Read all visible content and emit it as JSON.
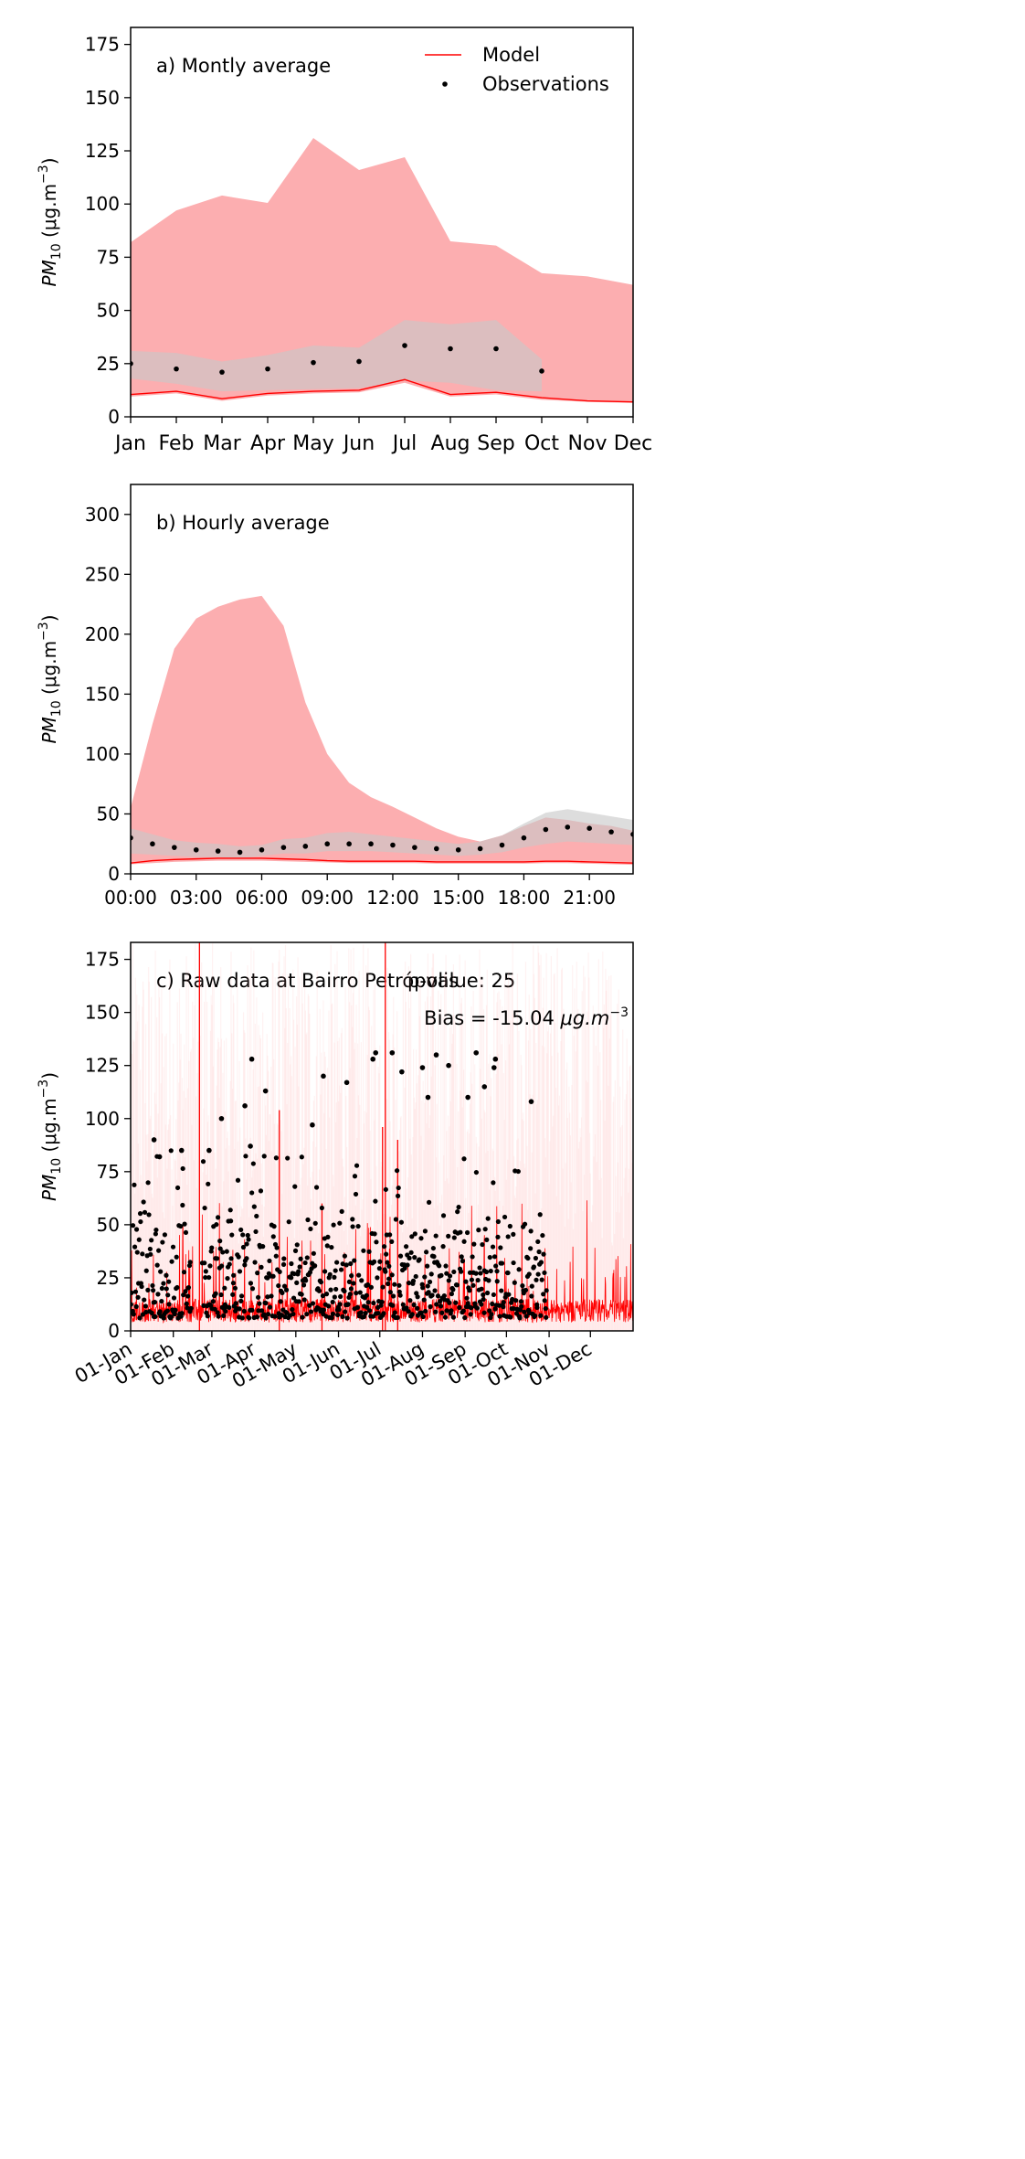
{
  "figure": {
    "colors": {
      "model_band": "#fcaeb0",
      "obs_band": "#c8c8c8",
      "model_line": "#ff0000",
      "obs_points": "#000000",
      "raw_model_shade": "#fde1e1"
    }
  },
  "chart_data": [
    {
      "type": "line",
      "label": "a) Montly average",
      "ylabel_main": "PM",
      "ylabel_sub": "10",
      "ylabel_units": "(μg.m",
      "ylabel_exp": "−3",
      "ylabel_close": ")",
      "ylim": [
        0,
        183
      ],
      "yticks": [
        0,
        25,
        50,
        75,
        100,
        125,
        150,
        175
      ],
      "x_is_numeric": false,
      "categories": [
        "Jan",
        "Feb",
        "Mar",
        "Apr",
        "May",
        "Jun",
        "Jul",
        "Aug",
        "Sep",
        "Oct",
        "Nov",
        "Dec"
      ],
      "xlim": [
        0,
        11
      ],
      "legend": {
        "placement": "top-right",
        "entries": [
          "Model",
          "Observations"
        ]
      },
      "grid": false,
      "model": {
        "name": "Model",
        "line": [
          10.5,
          12,
          8.5,
          11,
          12,
          12.5,
          17.5,
          10.5,
          11.5,
          9,
          7.5,
          7
        ],
        "band_low": [
          9.5,
          11,
          7.5,
          10,
          11,
          11.5,
          16,
          9.5,
          10.5,
          8,
          7,
          6.5
        ],
        "band_high": [
          82,
          97,
          104,
          100.5,
          131,
          116,
          122,
          82.5,
          80.5,
          67.5,
          66,
          62
        ]
      },
      "observations": {
        "name": "Observations",
        "values": [
          25,
          22.5,
          21,
          22.5,
          25.5,
          26,
          33.5,
          32,
          32,
          21.5
        ],
        "band_low": [
          18,
          15.5,
          12,
          12.5,
          13,
          13.5,
          17,
          16,
          12.5,
          12
        ],
        "band_high": [
          31,
          30,
          26,
          29,
          33.5,
          32.5,
          45.5,
          43.5,
          45.5,
          27
        ]
      }
    },
    {
      "type": "line",
      "label": "b) Hourly average",
      "ylabel_main": "PM",
      "ylabel_sub": "10",
      "ylabel_units": "(μg.m",
      "ylabel_exp": "−3",
      "ylabel_close": ")",
      "ylim": [
        0,
        325
      ],
      "yticks": [
        0,
        50,
        100,
        150,
        200,
        250,
        300
      ],
      "x_is_numeric": true,
      "x": [
        0,
        1,
        2,
        3,
        4,
        5,
        6,
        7,
        8,
        9,
        10,
        11,
        12,
        13,
        14,
        15,
        16,
        17,
        18,
        19,
        20,
        21,
        22,
        23
      ],
      "xlim": [
        0,
        23
      ],
      "xticks": [
        0,
        3,
        6,
        9,
        12,
        15,
        18,
        21
      ],
      "xticklabels": [
        "00:00",
        "03:00",
        "06:00",
        "09:00",
        "12:00",
        "15:00",
        "18:00",
        "21:00"
      ],
      "grid": false,
      "model": {
        "name": "Model",
        "line": [
          9,
          11,
          12,
          12.5,
          13,
          13,
          13,
          12.5,
          12,
          11,
          10.5,
          10.5,
          10.5,
          10.5,
          10,
          10,
          10,
          10,
          10,
          10.5,
          10.5,
          10,
          9.5,
          9
        ],
        "band_low": [
          8,
          9,
          10,
          10.5,
          11,
          11,
          11,
          10.5,
          10,
          9.5,
          9,
          9,
          9,
          9,
          8.5,
          8.5,
          8.5,
          8.5,
          8.5,
          9,
          9,
          8.5,
          8,
          7.5
        ],
        "band_high": [
          55,
          125,
          188,
          213,
          223,
          229,
          232,
          207,
          143,
          100,
          76,
          64,
          56,
          47,
          38,
          31,
          27,
          32,
          40,
          47,
          45,
          42,
          40,
          36
        ]
      },
      "observations": {
        "name": "Observations",
        "values": [
          30,
          25,
          22,
          20,
          19,
          18,
          20,
          22,
          23,
          25,
          25,
          25,
          24,
          22,
          21,
          20,
          21,
          24,
          30,
          37,
          39,
          38,
          35,
          33
        ],
        "band_low": [
          17,
          16,
          15,
          14,
          14,
          13,
          15,
          17,
          17,
          19,
          19,
          19,
          18,
          17,
          16,
          15,
          16,
          18,
          22,
          25,
          27,
          26,
          25,
          24
        ],
        "band_high": [
          38,
          33,
          28,
          26,
          25,
          23,
          24,
          29,
          30,
          34,
          35,
          33,
          31,
          29,
          27,
          25,
          27,
          32,
          42,
          51,
          54,
          51,
          48,
          45
        ]
      }
    },
    {
      "type": "scatter",
      "label": "c) Raw data at Bairro Petrópolis",
      "overlay_text": "p-value: 25",
      "bias_prefix": "Bias = -15.04 ",
      "bias_units": "μg.m",
      "bias_exp": "−3",
      "ylabel_main": "PM",
      "ylabel_sub": "10",
      "ylabel_units": "(μg.m",
      "ylabel_exp": "−3",
      "ylabel_close": ")",
      "ylim": [
        0,
        183
      ],
      "yticks": [
        0,
        25,
        50,
        75,
        100,
        125,
        150,
        175
      ],
      "x_is_numeric": true,
      "x_unit": "day of year (1 = 01-Jan)",
      "xlim": [
        1,
        366
      ],
      "xticks": [
        1,
        32,
        60,
        91,
        121,
        152,
        182,
        213,
        244,
        274,
        305,
        335
      ],
      "xticklabels": [
        "01-Jan",
        "01-Feb",
        "01-Mar",
        "01-Apr",
        "01-May",
        "01-Jun",
        "01-Jul",
        "01-Aug",
        "01-Sep",
        "01-Oct",
        "01-Nov",
        "01-Dec"
      ],
      "grid": false,
      "observation_periods": [
        [
          1,
          45
        ],
        [
          53,
          303
        ]
      ],
      "model_spikes": [
        {
          "x": 51,
          "y": 183
        },
        {
          "x": 186,
          "y": 183
        },
        {
          "x": 184,
          "y": 96
        },
        {
          "x": 109,
          "y": 104
        },
        {
          "x": 195,
          "y": 90
        },
        {
          "x": 140,
          "y": 60
        }
      ],
      "highlight_points": [
        {
          "x": 18,
          "y": 90
        },
        {
          "x": 22,
          "y": 82
        },
        {
          "x": 38,
          "y": 85
        },
        {
          "x": 58,
          "y": 85
        },
        {
          "x": 67,
          "y": 100
        },
        {
          "x": 84,
          "y": 106
        },
        {
          "x": 89,
          "y": 128
        },
        {
          "x": 88,
          "y": 87
        },
        {
          "x": 99,
          "y": 113
        },
        {
          "x": 133,
          "y": 97
        },
        {
          "x": 141,
          "y": 120
        },
        {
          "x": 158,
          "y": 117
        },
        {
          "x": 177,
          "y": 128
        },
        {
          "x": 179,
          "y": 131
        },
        {
          "x": 191,
          "y": 131
        },
        {
          "x": 198,
          "y": 122
        },
        {
          "x": 213,
          "y": 124
        },
        {
          "x": 223,
          "y": 130
        },
        {
          "x": 232,
          "y": 125
        },
        {
          "x": 246,
          "y": 110
        },
        {
          "x": 252,
          "y": 131
        },
        {
          "x": 266,
          "y": 128
        },
        {
          "x": 265,
          "y": 124
        },
        {
          "x": 292,
          "y": 108
        },
        {
          "x": 258,
          "y": 115
        },
        {
          "x": 217,
          "y": 110
        }
      ]
    }
  ]
}
